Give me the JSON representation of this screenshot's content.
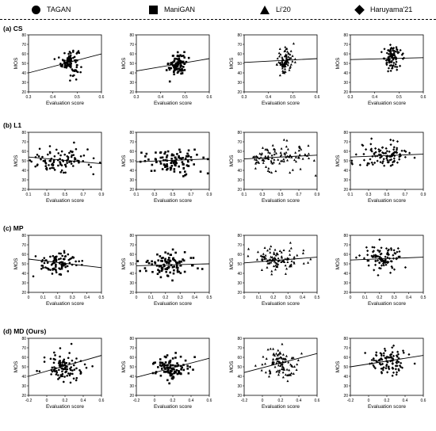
{
  "legend": [
    {
      "label": "TAGAN",
      "marker": "circle"
    },
    {
      "label": "ManiGAN",
      "marker": "square"
    },
    {
      "label": "Li'20",
      "marker": "triangle"
    },
    {
      "label": "Haruyama'21",
      "marker": "diamond"
    }
  ],
  "sections": [
    {
      "label": "(a) CS",
      "xlim": [
        0.3,
        0.6
      ],
      "xticks": [
        "0.3",
        "0.4",
        "0.5",
        "0.6"
      ]
    },
    {
      "label": "(b) L1",
      "xlim": [
        0.1,
        0.9
      ],
      "xticks": [
        "0.1",
        "0.3",
        "0.5",
        "0.7",
        "0.9"
      ]
    },
    {
      "label": "(c) MP",
      "xlim": [
        0.0,
        0.5
      ],
      "xticks": [
        "0",
        "0.1",
        "0.2",
        "0.3",
        "0.4",
        "0.5"
      ]
    },
    {
      "label": "(d) MD (Ours)",
      "xlim": [
        -0.2,
        0.6
      ],
      "xticks": [
        "-0.2",
        "0",
        "0.2",
        "0.4",
        "0.6"
      ]
    }
  ],
  "axis_text": {
    "xlabel": "Evaluation score",
    "ylabel": "MOS"
  },
  "chart_data": [
    {
      "type": "scatter",
      "section": "(a) CS",
      "method": "TAGAN",
      "marker": "circle",
      "ylim": [
        20,
        80
      ],
      "yticks": [
        20,
        30,
        40,
        50,
        60,
        70,
        80
      ],
      "x_center": 0.47,
      "x_spread": 0.018,
      "y_center": 52,
      "y_spread": 7,
      "n": 90,
      "trend": {
        "x": [
          0.3,
          0.6
        ],
        "y": [
          40,
          60
        ]
      }
    },
    {
      "type": "scatter",
      "section": "(a) CS",
      "method": "ManiGAN",
      "marker": "square",
      "ylim": [
        20,
        80
      ],
      "yticks": [
        20,
        30,
        40,
        50,
        60,
        70,
        80
      ],
      "x_center": 0.47,
      "x_spread": 0.018,
      "y_center": 49,
      "y_spread": 6,
      "n": 90,
      "trend": {
        "x": [
          0.3,
          0.6
        ],
        "y": [
          42,
          55
        ]
      }
    },
    {
      "type": "scatter",
      "section": "(a) CS",
      "method": "Li'20",
      "marker": "triangle",
      "ylim": [
        20,
        80
      ],
      "yticks": [
        20,
        30,
        40,
        50,
        60,
        70,
        80
      ],
      "x_center": 0.47,
      "x_spread": 0.018,
      "y_center": 53,
      "y_spread": 7,
      "n": 90,
      "trend": {
        "x": [
          0.3,
          0.6
        ],
        "y": [
          51,
          55
        ]
      }
    },
    {
      "type": "scatter",
      "section": "(a) CS",
      "method": "Haruyama'21",
      "marker": "diamond",
      "ylim": [
        20,
        80
      ],
      "yticks": [
        20,
        30,
        40,
        50,
        60,
        70,
        80
      ],
      "x_center": 0.47,
      "x_spread": 0.018,
      "y_center": 55,
      "y_spread": 7,
      "n": 90,
      "trend": {
        "x": [
          0.3,
          0.6
        ],
        "y": [
          54,
          56
        ]
      }
    },
    {
      "type": "scatter",
      "section": "(b) L1",
      "method": "TAGAN",
      "marker": "circle",
      "ylim": [
        20,
        80
      ],
      "yticks": [
        20,
        30,
        40,
        50,
        60,
        70,
        80
      ],
      "x_center": 0.45,
      "x_spread": 0.15,
      "y_center": 51,
      "y_spread": 7,
      "n": 100,
      "trend": {
        "x": [
          0.1,
          0.9
        ],
        "y": [
          54,
          47
        ]
      }
    },
    {
      "type": "scatter",
      "section": "(b) L1",
      "method": "ManiGAN",
      "marker": "square",
      "ylim": [
        20,
        80
      ],
      "yticks": [
        20,
        30,
        40,
        50,
        60,
        70,
        80
      ],
      "x_center": 0.48,
      "x_spread": 0.17,
      "y_center": 50,
      "y_spread": 7,
      "n": 100,
      "trend": {
        "x": [
          0.1,
          0.9
        ],
        "y": [
          49,
          52
        ]
      }
    },
    {
      "type": "scatter",
      "section": "(b) L1",
      "method": "Li'20",
      "marker": "triangle",
      "ylim": [
        20,
        80
      ],
      "yticks": [
        20,
        30,
        40,
        50,
        60,
        70,
        80
      ],
      "x_center": 0.48,
      "x_spread": 0.17,
      "y_center": 54,
      "y_spread": 7,
      "n": 100,
      "trend": {
        "x": [
          0.1,
          0.9
        ],
        "y": [
          52,
          56
        ]
      }
    },
    {
      "type": "scatter",
      "section": "(b) L1",
      "method": "Haruyama'21",
      "marker": "diamond",
      "ylim": [
        20,
        80
      ],
      "yticks": [
        20,
        30,
        40,
        50,
        60,
        70,
        80
      ],
      "x_center": 0.5,
      "x_spread": 0.15,
      "y_center": 56,
      "y_spread": 7,
      "n": 100,
      "trend": {
        "x": [
          0.1,
          0.9
        ],
        "y": [
          54,
          57
        ]
      }
    },
    {
      "type": "scatter",
      "section": "(c) MP",
      "method": "TAGAN",
      "marker": "circle",
      "ylim": [
        20,
        80
      ],
      "yticks": [
        20,
        30,
        40,
        50,
        60,
        70,
        80
      ],
      "x_center": 0.2,
      "x_spread": 0.06,
      "y_center": 51,
      "y_spread": 7,
      "n": 100,
      "trend": {
        "x": [
          0.0,
          0.5
        ],
        "y": [
          55,
          46
        ]
      }
    },
    {
      "type": "scatter",
      "section": "(c) MP",
      "method": "ManiGAN",
      "marker": "square",
      "ylim": [
        20,
        80
      ],
      "yticks": [
        20,
        30,
        40,
        50,
        60,
        70,
        80
      ],
      "x_center": 0.22,
      "x_spread": 0.07,
      "y_center": 49,
      "y_spread": 6,
      "n": 100,
      "trend": {
        "x": [
          0.0,
          0.5
        ],
        "y": [
          48,
          50
        ]
      }
    },
    {
      "type": "scatter",
      "section": "(c) MP",
      "method": "Li'20",
      "marker": "triangle",
      "ylim": [
        20,
        80
      ],
      "yticks": [
        20,
        30,
        40,
        50,
        60,
        70,
        80
      ],
      "x_center": 0.23,
      "x_spread": 0.08,
      "y_center": 54,
      "y_spread": 7,
      "n": 100,
      "trend": {
        "x": [
          0.0,
          0.5
        ],
        "y": [
          51,
          57
        ]
      }
    },
    {
      "type": "scatter",
      "section": "(c) MP",
      "method": "Haruyama'21",
      "marker": "diamond",
      "ylim": [
        20,
        80
      ],
      "yticks": [
        20,
        30,
        40,
        50,
        60,
        70,
        80
      ],
      "x_center": 0.22,
      "x_spread": 0.07,
      "y_center": 56,
      "y_spread": 7,
      "n": 100,
      "trend": {
        "x": [
          0.0,
          0.5
        ],
        "y": [
          54,
          57
        ]
      }
    },
    {
      "type": "scatter",
      "section": "(d) MD (Ours)",
      "method": "TAGAN",
      "marker": "circle",
      "ylim": [
        20,
        80
      ],
      "yticks": [
        20,
        30,
        40,
        50,
        60,
        70,
        80
      ],
      "x_center": 0.2,
      "x_spread": 0.1,
      "y_center": 51,
      "y_spread": 7,
      "n": 100,
      "trend": {
        "x": [
          -0.2,
          0.6
        ],
        "y": [
          40,
          62
        ]
      }
    },
    {
      "type": "scatter",
      "section": "(d) MD (Ours)",
      "method": "ManiGAN",
      "marker": "square",
      "ylim": [
        20,
        80
      ],
      "yticks": [
        20,
        30,
        40,
        50,
        60,
        70,
        80
      ],
      "x_center": 0.2,
      "x_spread": 0.1,
      "y_center": 49,
      "y_spread": 6,
      "n": 100,
      "trend": {
        "x": [
          -0.2,
          0.6
        ],
        "y": [
          39,
          59
        ]
      }
    },
    {
      "type": "scatter",
      "section": "(d) MD (Ours)",
      "method": "Li'20",
      "marker": "triangle",
      "ylim": [
        20,
        80
      ],
      "yticks": [
        20,
        30,
        40,
        50,
        60,
        70,
        80
      ],
      "x_center": 0.2,
      "x_spread": 0.1,
      "y_center": 54,
      "y_spread": 7,
      "n": 100,
      "trend": {
        "x": [
          -0.2,
          0.6
        ],
        "y": [
          44,
          64
        ]
      }
    },
    {
      "type": "scatter",
      "section": "(d) MD (Ours)",
      "method": "Haruyama'21",
      "marker": "diamond",
      "ylim": [
        20,
        80
      ],
      "yticks": [
        20,
        30,
        40,
        50,
        60,
        70,
        80
      ],
      "x_center": 0.22,
      "x_spread": 0.1,
      "y_center": 56,
      "y_spread": 7,
      "n": 100,
      "trend": {
        "x": [
          -0.2,
          0.6
        ],
        "y": [
          50,
          62
        ]
      }
    }
  ]
}
